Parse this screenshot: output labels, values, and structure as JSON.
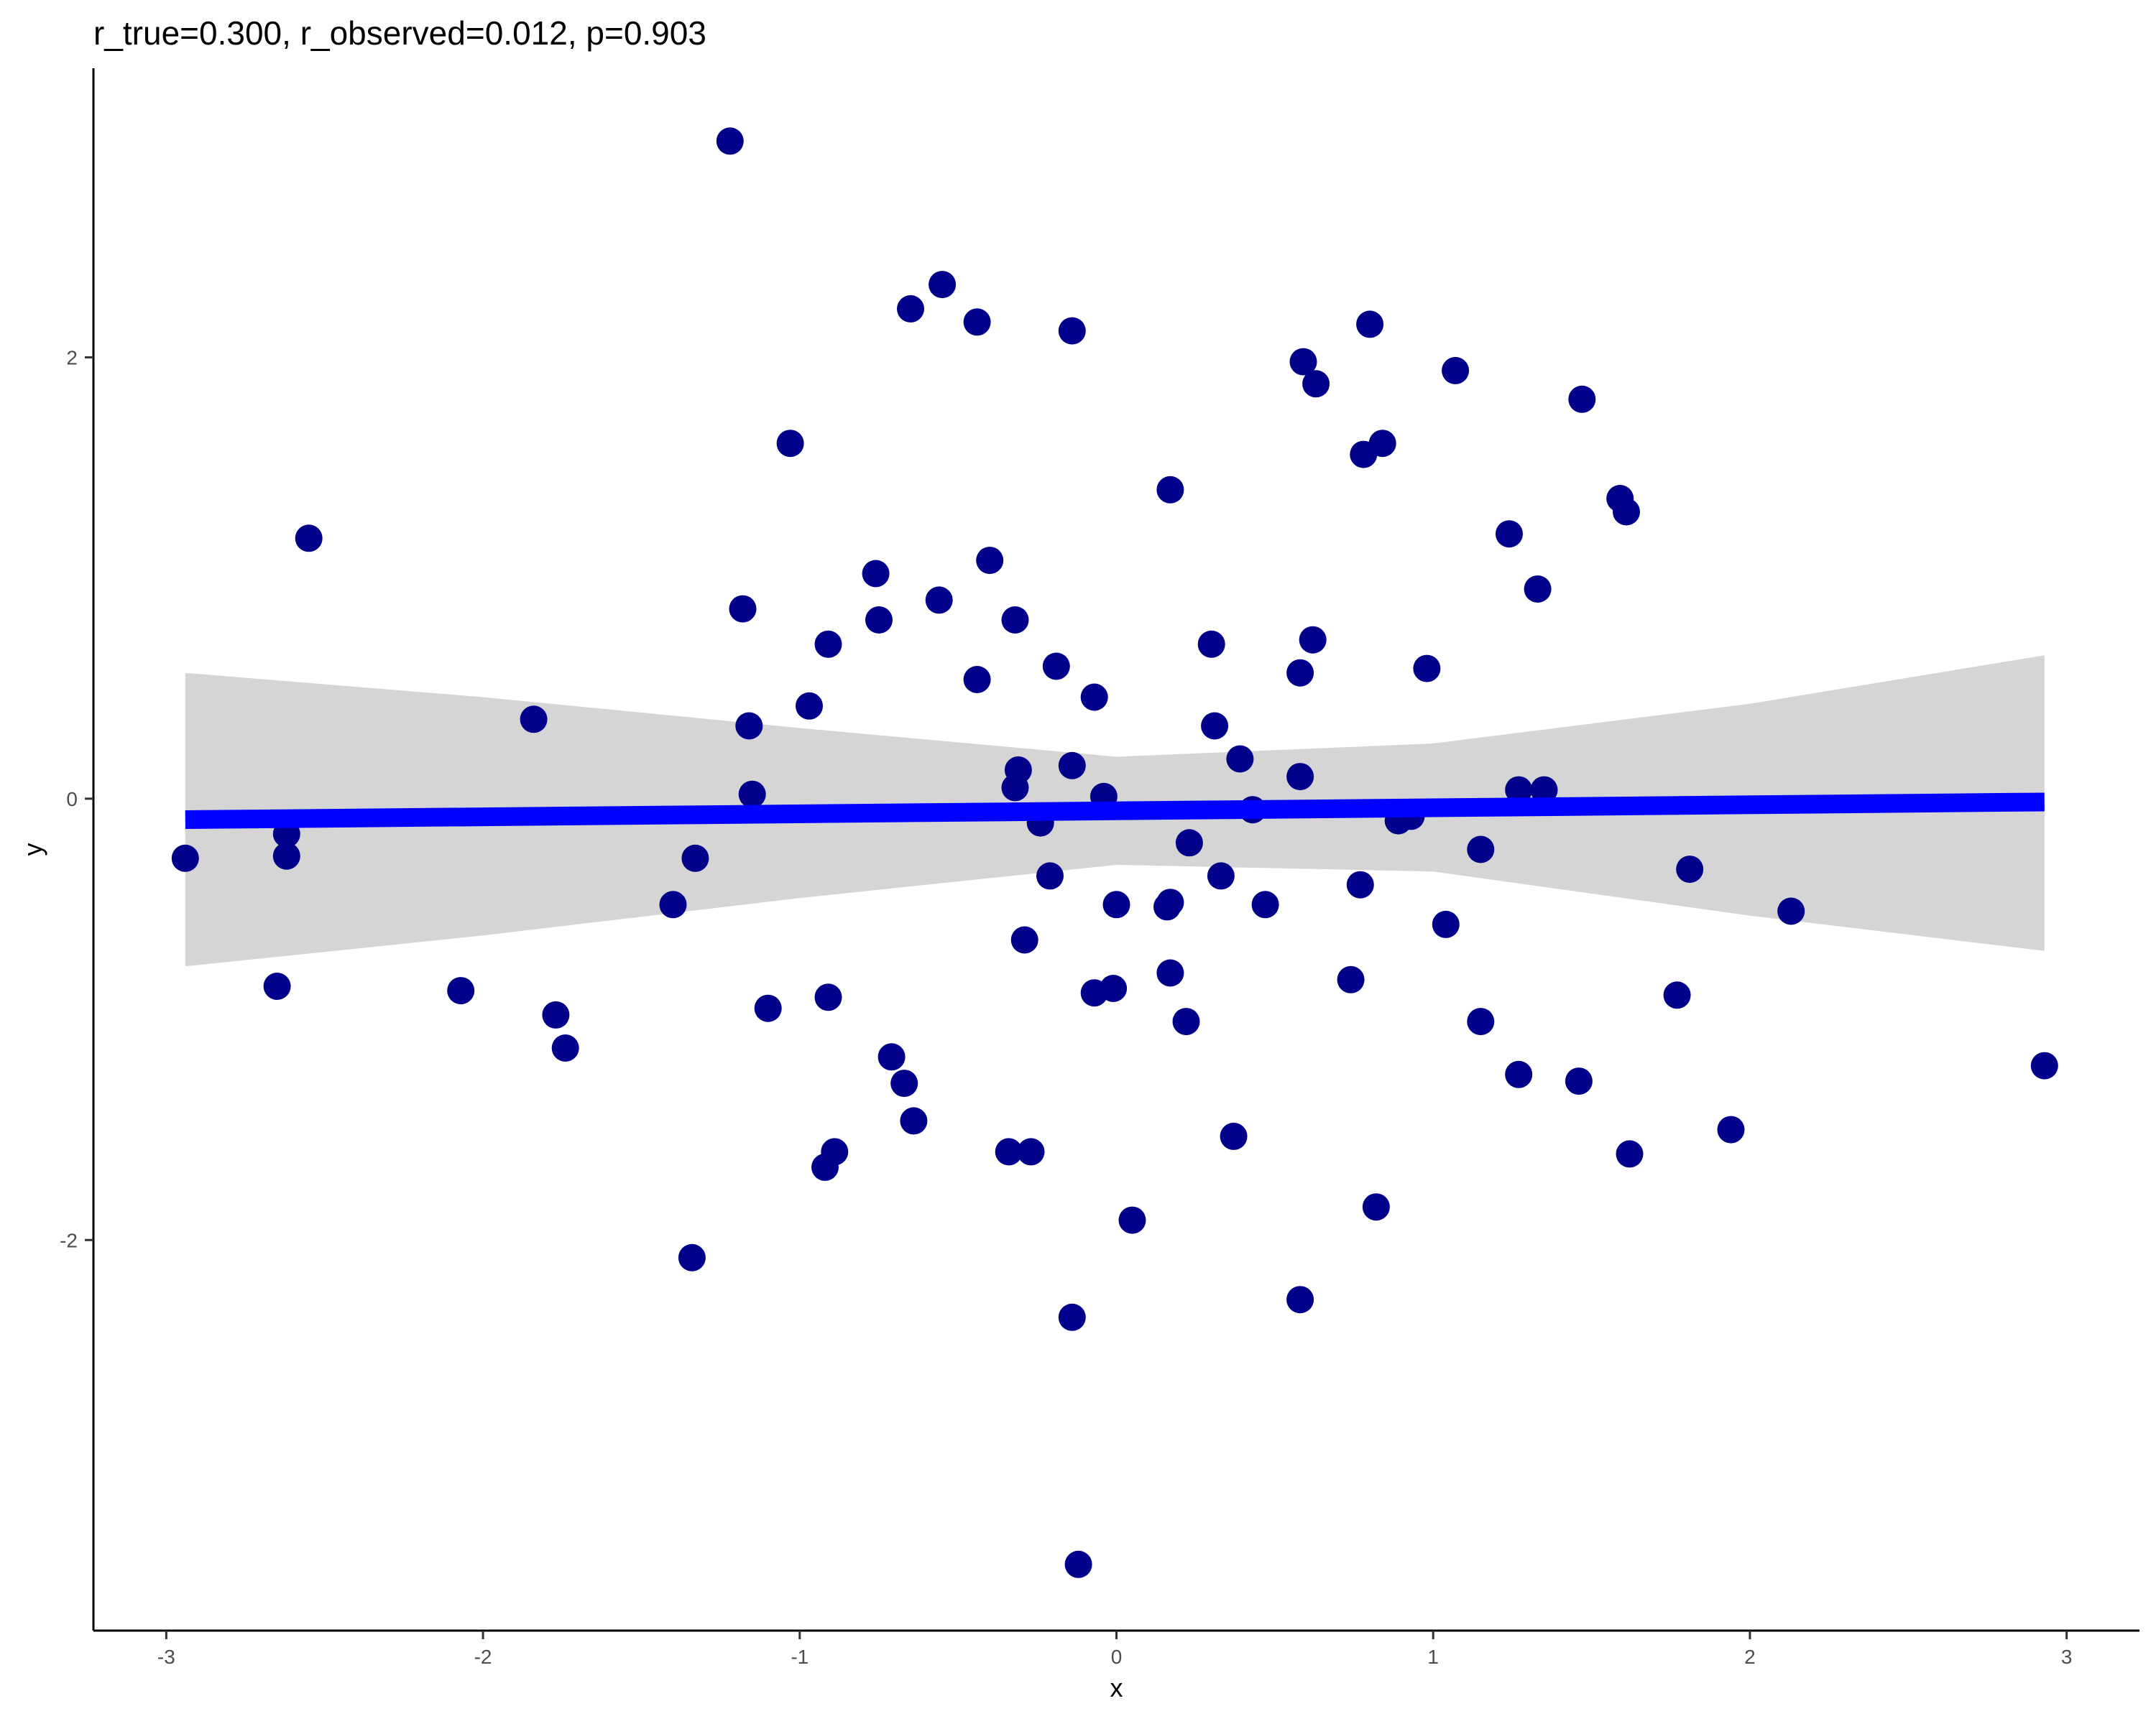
{
  "chart_data": {
    "type": "scatter",
    "title": "r_true=0.300, r_observed=0.012, p=0.903",
    "xlabel": "x",
    "ylabel": "y",
    "xlim": [
      -3.23,
      3.23
    ],
    "ylim": [
      -3.77,
      3.31
    ],
    "x_ticks": [
      -3,
      -2,
      -1,
      0,
      1,
      2,
      3
    ],
    "x_tick_labels": [
      "-3",
      "-2",
      "-1",
      "0",
      "1",
      "2",
      "3"
    ],
    "y_ticks": [
      -2,
      0,
      2
    ],
    "y_tick_labels": [
      "-2",
      "0",
      "2"
    ],
    "grid": false,
    "colors": {
      "points": "#00008b",
      "fit_line": "#0000ff",
      "confidence_band": "#d3d3d3",
      "axis": "#000000",
      "tick_text": "#4d4d4d"
    },
    "fit": {
      "x": [
        -2.94,
        2.93
      ],
      "y": [
        -0.095,
        -0.015
      ],
      "band_x": [
        -2.94,
        -2.0,
        -1.0,
        0.0,
        1.0,
        2.0,
        2.93
      ],
      "band_upper": [
        0.57,
        0.46,
        0.32,
        0.19,
        0.25,
        0.43,
        0.65
      ],
      "band_lower": [
        -0.76,
        -0.62,
        -0.45,
        -0.3,
        -0.33,
        -0.53,
        -0.69
      ]
    },
    "points": [
      {
        "x": -1.22,
        "y": 2.98
      },
      {
        "x": -0.55,
        "y": 2.33
      },
      {
        "x": -0.65,
        "y": 2.22
      },
      {
        "x": -0.44,
        "y": 2.16
      },
      {
        "x": -0.14,
        "y": 2.12
      },
      {
        "x": 0.8,
        "y": 2.15
      },
      {
        "x": 0.59,
        "y": 1.98
      },
      {
        "x": 1.07,
        "y": 1.94
      },
      {
        "x": 0.63,
        "y": 1.88
      },
      {
        "x": 1.47,
        "y": 1.81
      },
      {
        "x": -1.03,
        "y": 1.61
      },
      {
        "x": 0.84,
        "y": 1.61
      },
      {
        "x": 0.78,
        "y": 1.56
      },
      {
        "x": 0.17,
        "y": 1.4
      },
      {
        "x": 1.59,
        "y": 1.36
      },
      {
        "x": 1.61,
        "y": 1.3
      },
      {
        "x": -2.55,
        "y": 1.18
      },
      {
        "x": 1.24,
        "y": 1.2
      },
      {
        "x": -0.4,
        "y": 1.08
      },
      {
        "x": -0.76,
        "y": 1.02
      },
      {
        "x": 1.33,
        "y": 0.95
      },
      {
        "x": -0.56,
        "y": 0.9
      },
      {
        "x": -1.18,
        "y": 0.86
      },
      {
        "x": -0.75,
        "y": 0.81
      },
      {
        "x": -0.32,
        "y": 0.81
      },
      {
        "x": 0.62,
        "y": 0.72
      },
      {
        "x": -0.91,
        "y": 0.7
      },
      {
        "x": 0.3,
        "y": 0.7
      },
      {
        "x": -0.19,
        "y": 0.6
      },
      {
        "x": 0.98,
        "y": 0.59
      },
      {
        "x": 0.58,
        "y": 0.57
      },
      {
        "x": -0.44,
        "y": 0.54
      },
      {
        "x": -0.07,
        "y": 0.46
      },
      {
        "x": -0.97,
        "y": 0.42
      },
      {
        "x": -1.84,
        "y": 0.36
      },
      {
        "x": -1.16,
        "y": 0.33
      },
      {
        "x": 0.31,
        "y": 0.33
      },
      {
        "x": 0.39,
        "y": 0.18
      },
      {
        "x": -0.31,
        "y": 0.13
      },
      {
        "x": -0.14,
        "y": 0.15
      },
      {
        "x": 0.58,
        "y": 0.1
      },
      {
        "x": -0.32,
        "y": 0.05
      },
      {
        "x": 1.27,
        "y": 0.04
      },
      {
        "x": 1.35,
        "y": 0.04
      },
      {
        "x": -1.15,
        "y": 0.02
      },
      {
        "x": -0.04,
        "y": 0.01
      },
      {
        "x": 0.43,
        "y": -0.05
      },
      {
        "x": 0.93,
        "y": -0.08
      },
      {
        "x": 0.89,
        "y": -0.1
      },
      {
        "x": -0.24,
        "y": -0.11
      },
      {
        "x": -2.62,
        "y": -0.16
      },
      {
        "x": 0.23,
        "y": -0.2
      },
      {
        "x": 1.15,
        "y": -0.23
      },
      {
        "x": -2.62,
        "y": -0.26
      },
      {
        "x": -2.94,
        "y": -0.27
      },
      {
        "x": -1.33,
        "y": -0.27
      },
      {
        "x": 1.81,
        "y": -0.32
      },
      {
        "x": -0.21,
        "y": -0.35
      },
      {
        "x": 0.33,
        "y": -0.35
      },
      {
        "x": 0.77,
        "y": -0.39
      },
      {
        "x": 0.17,
        "y": -0.47
      },
      {
        "x": 0.16,
        "y": -0.49
      },
      {
        "x": -1.4,
        "y": -0.48
      },
      {
        "x": 0.0,
        "y": -0.48
      },
      {
        "x": 0.47,
        "y": -0.48
      },
      {
        "x": 2.13,
        "y": -0.51
      },
      {
        "x": 1.04,
        "y": -0.57
      },
      {
        "x": -0.29,
        "y": -0.64
      },
      {
        "x": 0.17,
        "y": -0.79
      },
      {
        "x": 0.74,
        "y": -0.82
      },
      {
        "x": -2.65,
        "y": -0.85
      },
      {
        "x": -2.07,
        "y": -0.87
      },
      {
        "x": -0.01,
        "y": -0.86
      },
      {
        "x": -0.07,
        "y": -0.88
      },
      {
        "x": -0.91,
        "y": -0.9
      },
      {
        "x": 1.77,
        "y": -0.89
      },
      {
        "x": -1.1,
        "y": -0.95
      },
      {
        "x": -1.77,
        "y": -0.98
      },
      {
        "x": 0.22,
        "y": -1.01
      },
      {
        "x": 1.15,
        "y": -1.01
      },
      {
        "x": -1.74,
        "y": -1.13
      },
      {
        "x": -0.71,
        "y": -1.17
      },
      {
        "x": -0.67,
        "y": -1.29
      },
      {
        "x": 1.27,
        "y": -1.25
      },
      {
        "x": 1.46,
        "y": -1.28
      },
      {
        "x": 2.93,
        "y": -1.21
      },
      {
        "x": -0.64,
        "y": -1.46
      },
      {
        "x": 1.94,
        "y": -1.5
      },
      {
        "x": 0.37,
        "y": -1.53
      },
      {
        "x": -0.89,
        "y": -1.6
      },
      {
        "x": -0.34,
        "y": -1.6
      },
      {
        "x": -0.27,
        "y": -1.6
      },
      {
        "x": 1.62,
        "y": -1.61
      },
      {
        "x": -0.92,
        "y": -1.67
      },
      {
        "x": 0.82,
        "y": -1.85
      },
      {
        "x": 0.05,
        "y": -1.91
      },
      {
        "x": -1.34,
        "y": -2.08
      },
      {
        "x": 0.58,
        "y": -2.27
      },
      {
        "x": -0.14,
        "y": -2.35
      },
      {
        "x": -0.12,
        "y": -3.47
      }
    ]
  }
}
